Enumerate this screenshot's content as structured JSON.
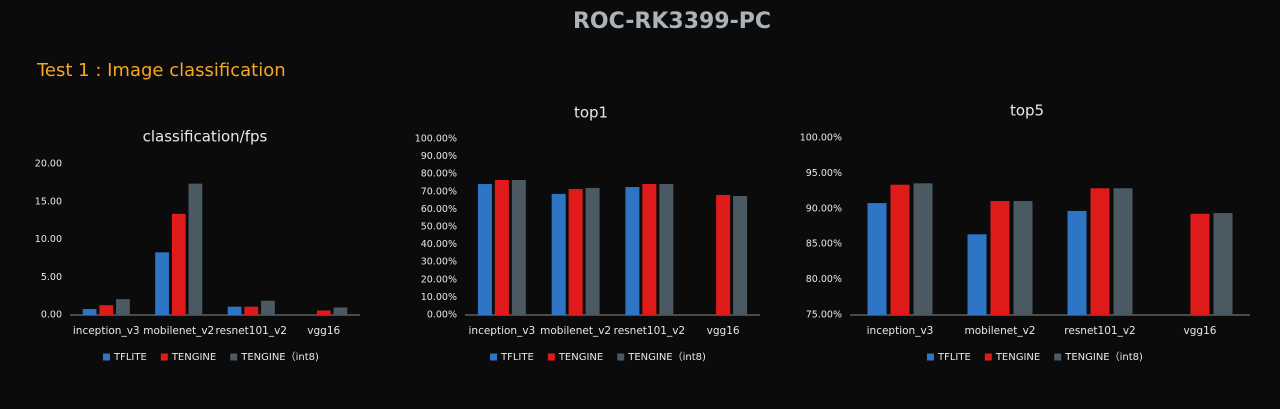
{
  "title": "ROC-RK3399-PC",
  "heading": "Test 1 : Image classification",
  "chart_data": [
    {
      "type": "bar",
      "title": "classification/fps",
      "categories": [
        "inception_v3",
        "mobilenet_v2",
        "resnet101_v2",
        "vgg16"
      ],
      "series": [
        {
          "name": "TFLITE",
          "color": "#2e75c6",
          "values": [
            0.8,
            8.3,
            1.1,
            null
          ]
        },
        {
          "name": "TENGINE",
          "color": "#e01b1b",
          "values": [
            1.3,
            13.4,
            1.1,
            0.6
          ]
        },
        {
          "name": "TENGINE（int8)",
          "color": "#4b5a62",
          "values": [
            2.1,
            17.4,
            1.9,
            1.0
          ]
        }
      ],
      "ylim": [
        0,
        20
      ],
      "yticks": [
        {
          "value": 0,
          "label": "0.00"
        },
        {
          "value": 5,
          "label": "5.00"
        },
        {
          "value": 10,
          "label": "10.00"
        },
        {
          "value": 15,
          "label": "15.00"
        },
        {
          "value": 20,
          "label": "20.00"
        }
      ]
    },
    {
      "type": "bar",
      "title": "top1",
      "categories": [
        "inception_v3",
        "mobilenet_v2",
        "resnet101_v2",
        "vgg16"
      ],
      "series": [
        {
          "name": "TFLITE",
          "color": "#2e75c6",
          "values": [
            74.4,
            68.8,
            72.7,
            null
          ]
        },
        {
          "name": "TENGINE",
          "color": "#e01b1b",
          "values": [
            76.7,
            71.6,
            74.4,
            68.2
          ]
        },
        {
          "name": "TENGINE（int8)",
          "color": "#4b5a62",
          "values": [
            76.7,
            72.2,
            74.4,
            67.6
          ]
        }
      ],
      "ylim": [
        0,
        100
      ],
      "yticks": [
        {
          "value": 0,
          "label": "0.00%"
        },
        {
          "value": 10,
          "label": "10.00%"
        },
        {
          "value": 20,
          "label": "20.00%"
        },
        {
          "value": 30,
          "label": "30.00%"
        },
        {
          "value": 40,
          "label": "40.00%"
        },
        {
          "value": 50,
          "label": "50.00%"
        },
        {
          "value": 60,
          "label": "60.00%"
        },
        {
          "value": 70,
          "label": "70.00%"
        },
        {
          "value": 80,
          "label": "80.00%"
        },
        {
          "value": 90,
          "label": "90.00%"
        },
        {
          "value": 100,
          "label": "100.00%"
        }
      ]
    },
    {
      "type": "bar",
      "title": "top5",
      "categories": [
        "inception_v3",
        "mobilenet_v2",
        "resnet101_v2",
        "vgg16"
      ],
      "series": [
        {
          "name": "TFLITE",
          "color": "#2e75c6",
          "values": [
            90.8,
            86.4,
            89.7,
            null
          ]
        },
        {
          "name": "TENGINE",
          "color": "#e01b1b",
          "values": [
            93.4,
            91.1,
            92.9,
            89.3
          ]
        },
        {
          "name": "TENGINE（int8)",
          "color": "#4b5a62",
          "values": [
            93.6,
            91.1,
            92.9,
            89.4
          ]
        }
      ],
      "ylim": [
        75,
        100
      ],
      "yticks": [
        {
          "value": 75,
          "label": "75.00%"
        },
        {
          "value": 80,
          "label": "80.00%"
        },
        {
          "value": 85,
          "label": "85.00%"
        },
        {
          "value": 90,
          "label": "90.00%"
        },
        {
          "value": 95,
          "label": "95.00%"
        },
        {
          "value": 100,
          "label": "100.00%"
        }
      ]
    }
  ]
}
